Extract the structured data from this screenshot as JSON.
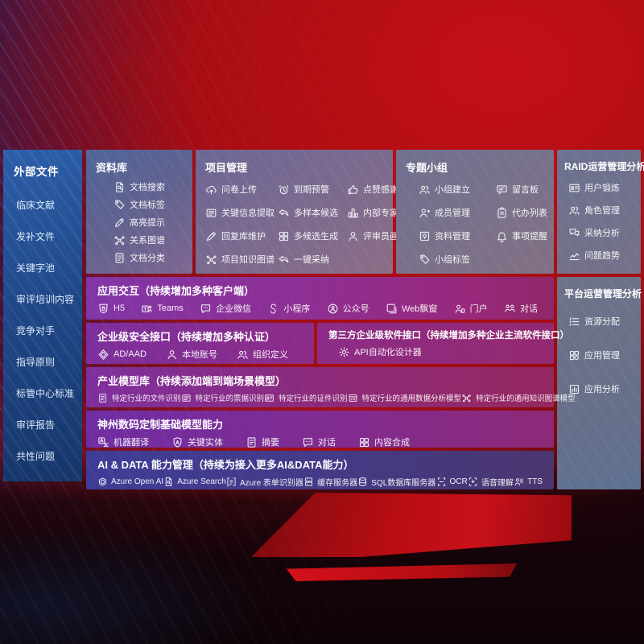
{
  "colors": {
    "background_red": "#b50d13",
    "sidebar_blue": "#1f4889",
    "row_purple": "#8d2c89",
    "ai_row_indigo": "#423b8c",
    "panel_gray": "#73718c",
    "text": "#ffffff"
  },
  "sidebar": {
    "header": "外部文件",
    "items": [
      "临床文献",
      "发补文件",
      "关键字池",
      "审评培训内容",
      "竞争对手",
      "指导原则",
      "标管中心标准",
      "审评报告",
      "共性问题"
    ]
  },
  "panels": {
    "library": {
      "title": "资料库",
      "items": [
        {
          "label": "文档搜索",
          "icon": "doc-search"
        },
        {
          "label": "文档标签",
          "icon": "tag"
        },
        {
          "label": "高亮提示",
          "icon": "pen"
        },
        {
          "label": "关系图谱",
          "icon": "network"
        },
        {
          "label": "文档分类",
          "icon": "doc-lines"
        }
      ]
    },
    "project": {
      "title": "项目管理",
      "items": [
        {
          "label": "问卷上传",
          "icon": "cloud-upload"
        },
        {
          "label": "到期预警",
          "icon": "alarm"
        },
        {
          "label": "点赞感谢",
          "icon": "thumbs-up"
        },
        {
          "label": "关键信息提取",
          "icon": "doc-extract"
        },
        {
          "label": "多样本候选",
          "icon": "reply-arrow"
        },
        {
          "label": "内部专家排名",
          "icon": "ranking"
        },
        {
          "label": "回复库维护",
          "icon": "pen"
        },
        {
          "label": "多候选生成",
          "icon": "grid4"
        },
        {
          "label": "评审员画像",
          "icon": "person"
        },
        {
          "label": "项目知识图谱",
          "icon": "network"
        },
        {
          "label": "一键采纳",
          "icon": "reply-arrow"
        }
      ]
    },
    "groups": {
      "title": "专题小组",
      "items": [
        {
          "label": "小组建立",
          "icon": "people"
        },
        {
          "label": "留言板",
          "icon": "bbs"
        },
        {
          "label": "成员管理",
          "icon": "person-plus"
        },
        {
          "label": "代办列表",
          "icon": "clipboard"
        },
        {
          "label": "资料管理",
          "icon": "album"
        },
        {
          "label": "事项提醒",
          "icon": "bell"
        },
        {
          "label": "小组标签",
          "icon": "tag"
        }
      ]
    },
    "raid": {
      "title": "RAID运营管理分析",
      "items": [
        {
          "label": "用户锻炼",
          "icon": "id-card"
        },
        {
          "label": "角色管理",
          "icon": "people"
        },
        {
          "label": "采纳分析",
          "icon": "qa-bubbles"
        },
        {
          "label": "问题趋势",
          "icon": "trend"
        }
      ]
    },
    "platform": {
      "title": "平台运营管理分析",
      "items": [
        {
          "label": "资源分配",
          "icon": "list"
        },
        {
          "label": "应用管理",
          "icon": "app-grid"
        },
        {
          "label": "应用分析",
          "icon": "chart-doc"
        }
      ]
    }
  },
  "rows": {
    "interaction": {
      "title": "应用交互（持续增加多种客户端）",
      "items": [
        {
          "label": "H5",
          "icon": "h5"
        },
        {
          "label": "Teams",
          "icon": "teams"
        },
        {
          "label": "企业微信",
          "icon": "chat-dots"
        },
        {
          "label": "小程序",
          "icon": "s-curve"
        },
        {
          "label": "公众号",
          "icon": "official"
        },
        {
          "label": "Web飘窗",
          "icon": "window"
        },
        {
          "label": "门户",
          "icon": "portal"
        },
        {
          "label": "对话",
          "icon": "dialog-people"
        }
      ]
    },
    "security": {
      "title": "企业级安全接口（持续增加多种认证）",
      "items": [
        {
          "label": "AD/AAD",
          "icon": "diamond"
        },
        {
          "label": "本地账号",
          "icon": "person"
        },
        {
          "label": "组织定义",
          "icon": "people"
        }
      ]
    },
    "thirdparty": {
      "title": "第三方企业级软件接口（持续增加多种企业主流软件接口）",
      "items": [
        {
          "label": "API自动化设计器",
          "icon": "gear"
        }
      ]
    },
    "models": {
      "title": "产业模型库（持续添加端到端场景模型）",
      "items": [
        {
          "label": "特定行业的文件识别",
          "icon": "doc-lines"
        },
        {
          "label": "特定行业的票据识别",
          "icon": "doc-extract"
        },
        {
          "label": "特定行业的证件识别",
          "icon": "id-card"
        },
        {
          "label": "特定行业的通用数据分析模型",
          "icon": "box-chart"
        },
        {
          "label": "特定行业的通用知识图谱模型",
          "icon": "network"
        }
      ]
    },
    "base_models": {
      "title": "神州数码定制基础模型能力",
      "items": [
        {
          "label": "机器翻译",
          "icon": "translate"
        },
        {
          "label": "关键实体",
          "icon": "shield-a"
        },
        {
          "label": "摘要",
          "icon": "doc-lines"
        },
        {
          "label": "对话",
          "icon": "chat-dots"
        },
        {
          "label": "内容合成",
          "icon": "grid4"
        }
      ]
    },
    "ai_data": {
      "title": "AI & DATA 能力管理（持续为接入更多AI&DATA能力）",
      "items": [
        {
          "label": "Azure Open AI",
          "icon": "openai"
        },
        {
          "label": "Azure Search",
          "icon": "doc-search"
        },
        {
          "label": "Azure 表单识别器",
          "icon": "brackets-doc"
        },
        {
          "label": "缓存服务器",
          "icon": "server"
        },
        {
          "label": "SQL数据库服务器",
          "icon": "db"
        },
        {
          "label": "OCR",
          "icon": "ocr"
        },
        {
          "label": "语音理解",
          "icon": "speech"
        },
        {
          "label": "TTS",
          "icon": "tts"
        }
      ]
    }
  }
}
